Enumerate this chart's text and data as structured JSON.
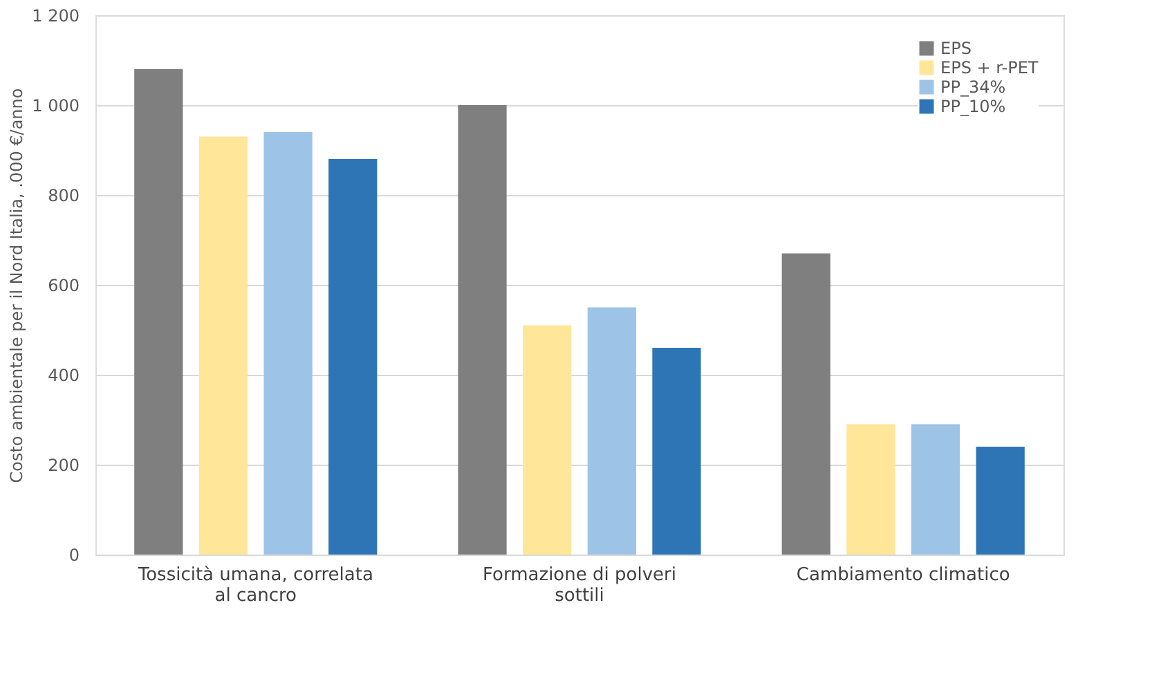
{
  "chart_data": {
    "type": "bar",
    "ylabel": "Costo ambientale per il Nord Italia, .000 €/anno",
    "categories": [
      "Tossicità umana, correlata al cancro",
      "Formazione di polveri sottili",
      "Cambiamento climatico"
    ],
    "series": [
      {
        "name": "EPS",
        "color": "#7f7f7f",
        "values": [
          1080,
          1000,
          670
        ]
      },
      {
        "name": "EPS + r-PET",
        "color": "#ffe699",
        "values": [
          930,
          510,
          290
        ]
      },
      {
        "name": "PP_34%",
        "color": "#9dc3e6",
        "values": [
          940,
          550,
          290
        ]
      },
      {
        "name": "PP_10%",
        "color": "#2e75b6",
        "values": [
          880,
          460,
          240
        ]
      }
    ],
    "ylim": [
      0,
      1200
    ],
    "yticks": [
      0,
      200,
      400,
      600,
      800,
      {
        "value": 1000,
        "label": "1 000"
      },
      {
        "value": 1200,
        "label": "1 200"
      }
    ],
    "grid": "y",
    "legend": "top right"
  }
}
